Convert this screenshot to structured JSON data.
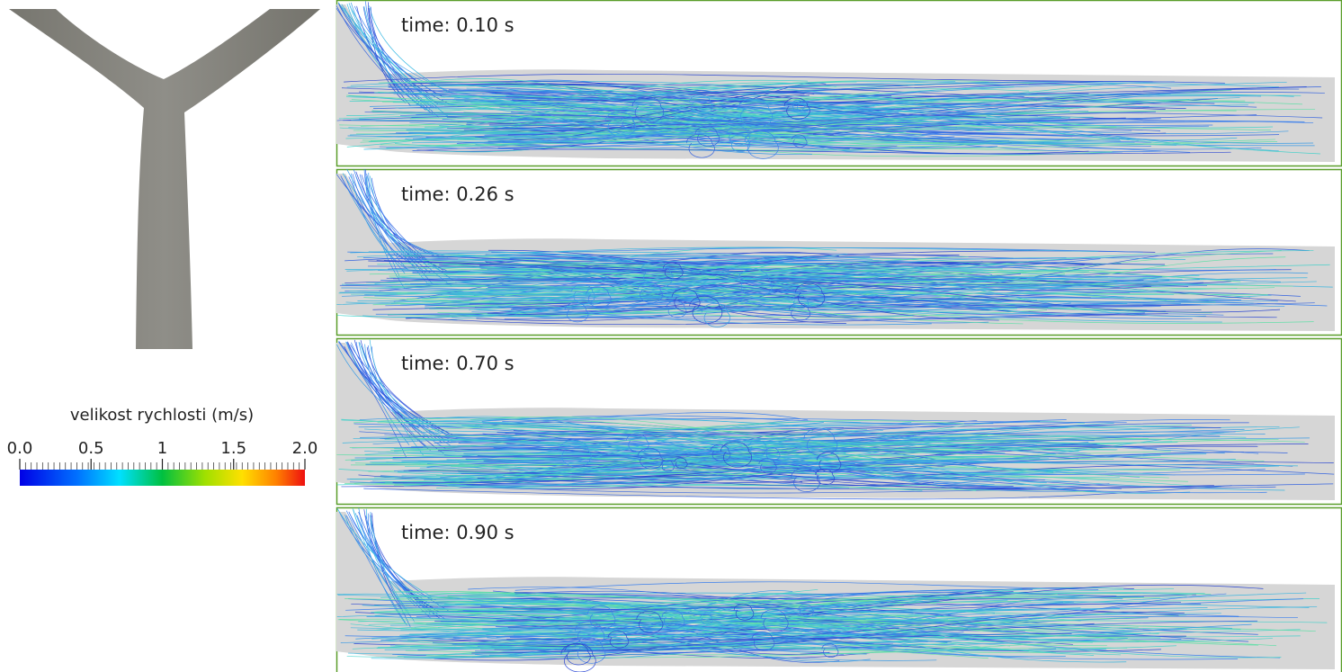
{
  "colorbar": {
    "title": "velikost rychlosti (m/s)",
    "range": [
      0,
      2
    ],
    "ticks": [
      {
        "value": 0,
        "label": "0.0"
      },
      0.5,
      1,
      1.5,
      {
        "value": 2,
        "label": "2.0"
      }
    ]
  },
  "panels": [
    {
      "label": "time: 0.10 s"
    },
    {
      "label": "time: 0.26 s"
    },
    {
      "label": "time: 0.70 s"
    },
    {
      "label": "time: 0.90 s"
    }
  ]
}
